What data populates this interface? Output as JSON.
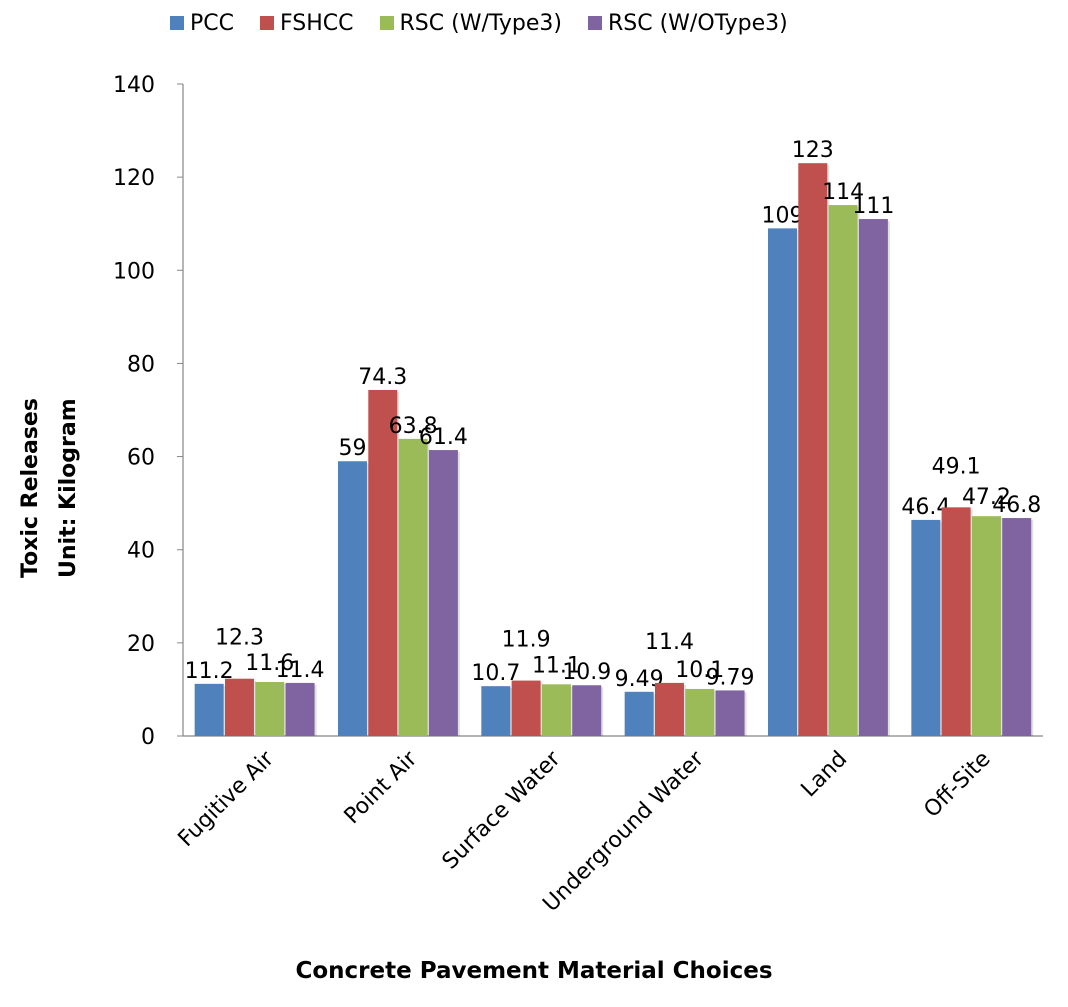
{
  "chart_data": {
    "type": "bar",
    "categories": [
      "Fugitive Air",
      "Point Air",
      "Surface Water",
      "Underground Water",
      "Land",
      "Off-Site"
    ],
    "series": [
      {
        "name": "PCC",
        "color": "#4F81BD",
        "values": [
          11.2,
          59,
          10.7,
          9.49,
          109,
          46.4
        ],
        "labels": [
          "11.2",
          "59",
          "10.7",
          "9.49",
          "109",
          "46.4"
        ]
      },
      {
        "name": "FSHCC",
        "color": "#C0504D",
        "values": [
          12.3,
          74.3,
          11.9,
          11.4,
          123,
          49.1
        ],
        "labels": [
          "12.3",
          "74.3",
          "11.9",
          "11.4",
          "123",
          "49.1"
        ]
      },
      {
        "name": "RSC (W/Type3)",
        "color": "#9BBB59",
        "values": [
          11.6,
          63.8,
          11.1,
          10.1,
          114,
          47.2
        ],
        "labels": [
          "11.6",
          "63.8",
          "11.1",
          "10.1",
          "114",
          "47.2"
        ]
      },
      {
        "name": "RSC (W/OType3)",
        "color": "#8064A2",
        "values": [
          11.4,
          61.4,
          10.9,
          9.79,
          111,
          46.8
        ],
        "labels": [
          "11.4",
          "61.4",
          "10.9",
          "9.79",
          "111",
          "46.8"
        ]
      }
    ],
    "ylim": [
      0,
      140
    ],
    "yticks": [
      0,
      20,
      40,
      60,
      80,
      100,
      120,
      140
    ],
    "xlabel": "Concrete Pavement Material Choices",
    "ylabel_line1": "Toxic Releases",
    "ylabel_line2": "Unit: Kilogram",
    "legend_position": "top",
    "grid": false
  }
}
